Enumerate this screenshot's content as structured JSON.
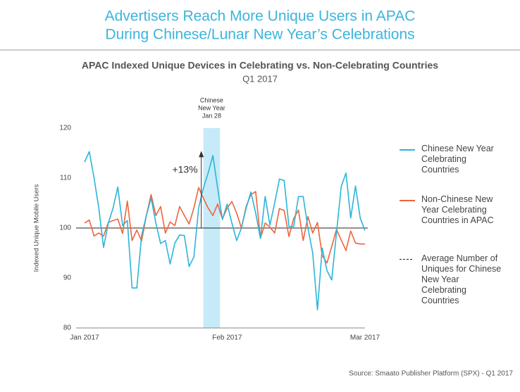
{
  "header": {
    "title_lines": [
      "Advertisers Reach More Unique Users in APAC",
      "During Chinese/Lunar New Year’s Celebrations"
    ]
  },
  "chart_data": {
    "type": "line",
    "title": "APAC Indexed Unique Devices in Celebrating vs. Non-Celebrating Countries",
    "subtitle": "Q1 2017",
    "y_label": "Indexed Unique Mobile Users",
    "categories": [
      "Jan 2017",
      null,
      null,
      null,
      null,
      null,
      null,
      null,
      null,
      null,
      null,
      null,
      null,
      null,
      null,
      null,
      null,
      null,
      null,
      null,
      null,
      null,
      null,
      null,
      null,
      null,
      null,
      null,
      null,
      null,
      "Feb 2017",
      null,
      null,
      null,
      null,
      null,
      null,
      null,
      null,
      null,
      null,
      null,
      null,
      null,
      null,
      null,
      null,
      null,
      null,
      null,
      null,
      null,
      null,
      null,
      null,
      null,
      null,
      null,
      null,
      "Mar 2017"
    ],
    "ylim": [
      80,
      120
    ],
    "yticks": [
      80,
      90,
      100,
      110,
      120
    ],
    "series": [
      {
        "name": "Chinese New Year Celebrating Countries",
        "color": "#2bb5d9",
        "values": [
          113.2,
          115.3,
          110,
          104,
          96.1,
          101,
          104,
          108.2,
          100.5,
          101.5,
          88,
          88,
          98.5,
          102.5,
          106,
          101,
          96.9,
          97.5,
          92.8,
          97,
          98.6,
          98.5,
          92.3,
          94.2,
          104,
          108,
          111,
          114.5,
          108,
          101.7,
          104.8,
          101,
          97.5,
          100,
          104,
          107.2,
          103,
          97.9,
          106.3,
          100.6,
          105,
          109.8,
          109.5,
          100.3,
          100.3,
          106.3,
          106.3,
          100,
          95,
          83.6,
          96,
          91.5,
          89.6,
          99,
          108.3,
          111,
          102,
          108.4,
          102,
          99.5
        ]
      },
      {
        "name": "Non-Chinese New Year Celebrating Countries in APAC",
        "color": "#f0643c",
        "values": [
          101,
          101.6,
          98.4,
          99,
          98.4,
          101.1,
          101.5,
          101.8,
          98.9,
          105.4,
          97.5,
          99.6,
          97.4,
          102.5,
          106.7,
          102.5,
          104.3,
          99,
          101.2,
          100.5,
          104.3,
          102.5,
          100.8,
          104,
          108.1,
          106,
          104,
          102.5,
          104.8,
          101.8,
          104,
          105.3,
          103,
          100,
          104.3,
          106.7,
          107.3,
          98,
          101,
          100.2,
          99,
          103.9,
          103.5,
          98.3,
          101.9,
          103.6,
          97.5,
          102.3,
          99,
          101.1,
          94.5,
          93,
          96.3,
          99.7,
          97.6,
          95.5,
          99.4,
          97,
          96.8,
          96.8
        ]
      }
    ],
    "reference_line": {
      "value": 100,
      "name": "Average Number of Uniques for Chinese New Year Celebrating Countries",
      "color": "#222222"
    },
    "highlight": {
      "range": [
        25,
        28.5
      ],
      "color": "#c6eaf8",
      "label_lines": [
        "Chinese",
        "New Year",
        "Jan 28"
      ]
    },
    "annotation": "+13%",
    "source": "Source: Smaato Publisher Platform (SPX) - Q1 2017"
  }
}
